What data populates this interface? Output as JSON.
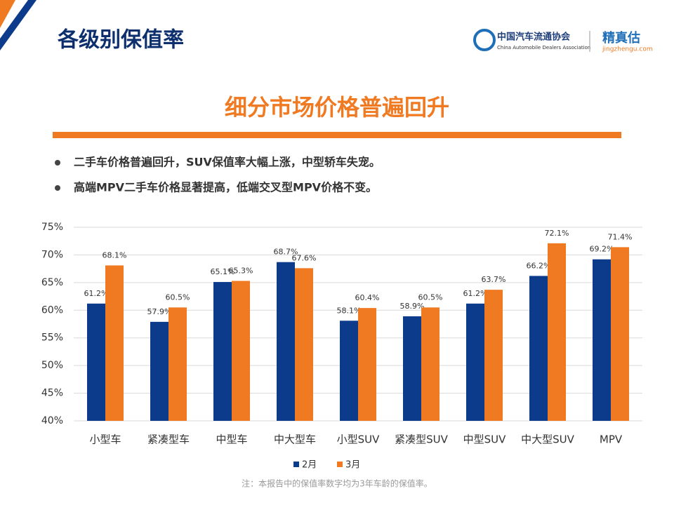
{
  "header": {
    "title": "各级别保值率",
    "org_name": "中国汽车流通协会",
    "org_name_en": "China Automobile Dealers Association",
    "brand": "精真估",
    "brand_url": "jingzhengu.com"
  },
  "subtitle": "细分市场价格普遍回升",
  "bullets": [
    "二手车价格普遍回升，SUV保值率大幅上涨，中型轿车失宠。",
    "高端MPV二手车价格显著提高，低端交叉型MPV价格不变。"
  ],
  "chart_data": {
    "type": "bar",
    "categories": [
      "小型车",
      "紧凑型车",
      "中型车",
      "中大型车",
      "小型SUV",
      "紧凑型SUV",
      "中型SUV",
      "中大型SUV",
      "MPV"
    ],
    "series": [
      {
        "name": "2月",
        "color": "#0d3b8c",
        "values": [
          61.2,
          57.9,
          65.1,
          68.7,
          58.1,
          58.9,
          61.2,
          66.2,
          69.2
        ],
        "value_labels": [
          "61.2%",
          "57.9%",
          "65.1%",
          "68.7%",
          "58.1%",
          "58.9%",
          "61.2%",
          "66.2%",
          "69.2%"
        ]
      },
      {
        "name": "3月",
        "color": "#f07a22",
        "values": [
          68.1,
          60.5,
          65.3,
          67.6,
          60.4,
          60.5,
          63.7,
          72.1,
          71.4
        ],
        "value_labels": [
          "68.1%",
          "60.5%",
          "65.3%",
          "67.6%",
          "60.4%",
          "60.5%",
          "63.7%",
          "72.1%",
          "71.4%"
        ]
      }
    ],
    "ylim": [
      40,
      75
    ],
    "yticks": [
      {
        "value": 40,
        "label": "40%"
      },
      {
        "value": 45,
        "label": "45%"
      },
      {
        "value": 50,
        "label": "50%"
      },
      {
        "value": 55,
        "label": "55%"
      },
      {
        "value": 60,
        "label": "60%"
      },
      {
        "value": 65,
        "label": "65%"
      },
      {
        "value": 70,
        "label": "70%"
      },
      {
        "value": 75,
        "label": "75%"
      }
    ],
    "grid": true,
    "legend": "bottom"
  },
  "note": "注：本报告中的保值率数字均为3年车龄的保值率。"
}
